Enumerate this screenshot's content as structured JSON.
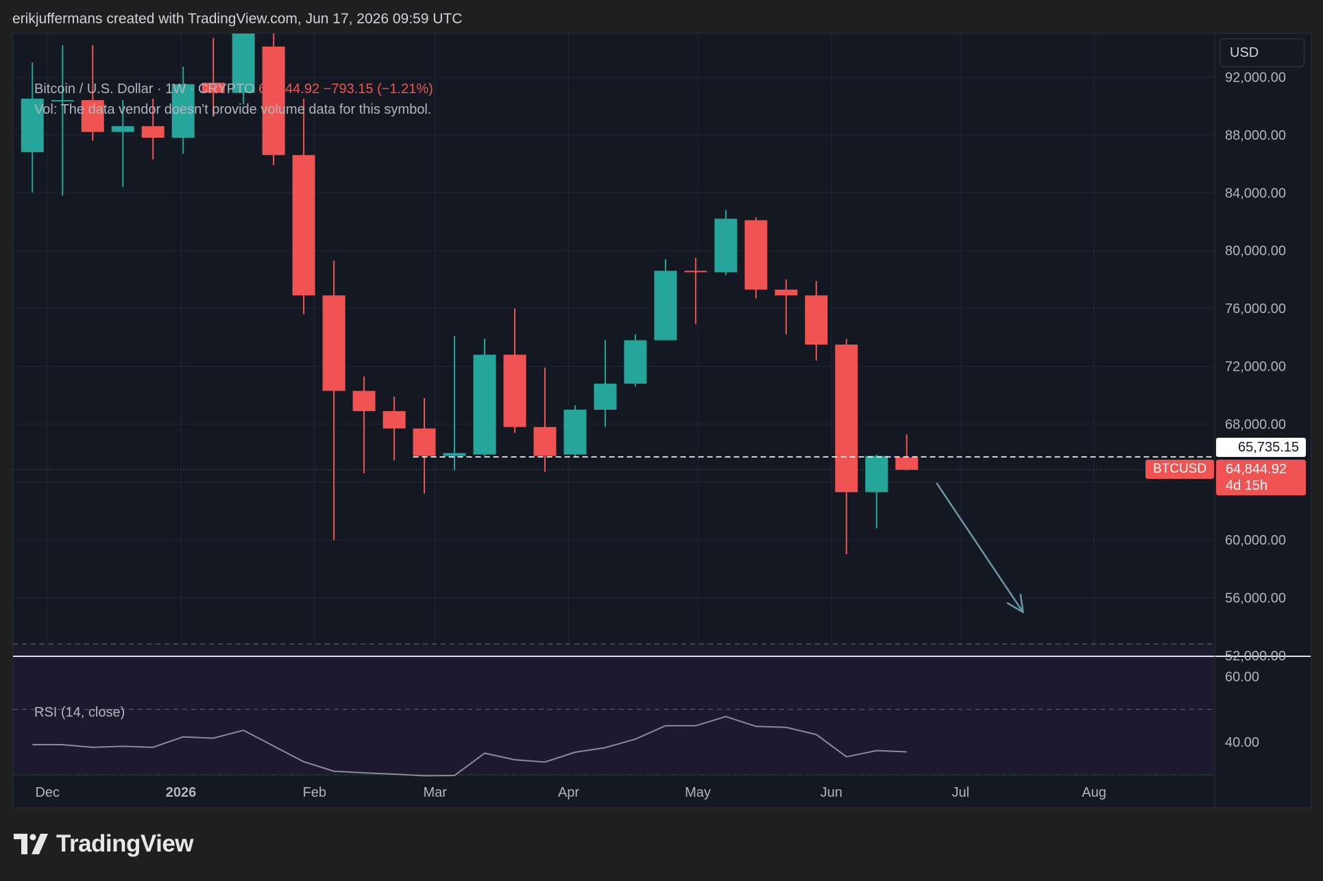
{
  "caption": "erikjuffermans created with TradingView.com, Jun 17, 2026 09:59 UTC",
  "currency_button": "USD",
  "legend": {
    "symbol_line": "Bitcoin / U.S. Dollar · 1W · CRYPTO",
    "price": "64,844.92",
    "change": "−793.15 (−1.21%)",
    "vol_note": "Vol: The data vendor doesn't provide volume data for this symbol."
  },
  "rsi_label": "RSI (14, close)",
  "brand": "TradingView",
  "price_tags": {
    "level_value": "65,735.15",
    "symbol": "BTCUSD",
    "last_value": "64,844.92",
    "countdown": "4d 15h"
  },
  "colors": {
    "up": "#26a69a",
    "down": "#f05452",
    "rsi_line": "#8c8a9c",
    "arrow": "#6b97a8",
    "background": "#141823"
  },
  "chart_data": [
    {
      "type": "candlestick",
      "title": "",
      "ylim": [
        52000,
        95000
      ],
      "y_ticks": [
        92000,
        88000,
        84000,
        80000,
        76000,
        72000,
        68000,
        64000,
        60000,
        56000,
        52000
      ],
      "y_tick_labels": [
        "92,000.00",
        "88,000.00",
        "84,000.00",
        "80,000.00",
        "76,000.00",
        "72,000.00",
        "68,000.00",
        "64,000.00",
        "60,000.00",
        "56,000.00",
        "52,000.00"
      ],
      "x_tick_labels": [
        "Dec",
        "2026",
        "Feb",
        "Mar",
        "Apr",
        "May",
        "Jun",
        "Jul",
        "Aug"
      ],
      "x_tick_dates": [
        "2025-12-01",
        "2026-01-01",
        "2026-02-01",
        "2026-03-01",
        "2026-04-01",
        "2026-05-01",
        "2026-06-01",
        "2026-07-01",
        "2026-08-01"
      ],
      "x_range": [
        "2025-11-23",
        "2026-08-29"
      ],
      "grid": true,
      "candles": [
        {
          "date": "2025-11-24",
          "open": 86800,
          "high": 93000,
          "low": 84000,
          "close": 90500
        },
        {
          "date": "2025-12-01",
          "open": 90400,
          "high": 94200,
          "low": 83800,
          "close": 90400
        },
        {
          "date": "2025-12-08",
          "open": 90400,
          "high": 94200,
          "low": 87600,
          "close": 88200
        },
        {
          "date": "2025-12-15",
          "open": 88200,
          "high": 90400,
          "low": 84400,
          "close": 88600
        },
        {
          "date": "2025-12-22",
          "open": 88600,
          "high": 90500,
          "low": 86300,
          "close": 87800
        },
        {
          "date": "2025-12-29",
          "open": 87800,
          "high": 92700,
          "low": 86700,
          "close": 91500
        },
        {
          "date": "2026-01-05",
          "open": 91600,
          "high": 94700,
          "low": 89300,
          "close": 90900
        },
        {
          "date": "2026-01-12",
          "open": 90900,
          "high": 96000,
          "low": 90100,
          "close": 95100
        },
        {
          "date": "2026-01-19",
          "open": 94100,
          "high": 95200,
          "low": 85900,
          "close": 86600
        },
        {
          "date": "2026-01-26",
          "open": 86600,
          "high": 90500,
          "low": 75600,
          "close": 76900
        },
        {
          "date": "2026-02-02",
          "open": 76900,
          "high": 79300,
          "low": 60000,
          "close": 70300
        },
        {
          "date": "2026-02-09",
          "open": 70300,
          "high": 71300,
          "low": 64600,
          "close": 68900
        },
        {
          "date": "2026-02-16",
          "open": 68900,
          "high": 69900,
          "low": 65500,
          "close": 67700
        },
        {
          "date": "2026-02-23",
          "open": 67700,
          "high": 69800,
          "low": 63200,
          "close": 65800
        },
        {
          "date": "2026-03-02",
          "open": 65800,
          "high": 74100,
          "low": 64800,
          "close": 66000
        },
        {
          "date": "2026-03-09",
          "open": 65900,
          "high": 73900,
          "low": 65800,
          "close": 72800
        },
        {
          "date": "2026-03-16",
          "open": 72800,
          "high": 76000,
          "low": 67400,
          "close": 67800
        },
        {
          "date": "2026-03-23",
          "open": 67800,
          "high": 71900,
          "low": 64700,
          "close": 65800
        },
        {
          "date": "2026-03-30",
          "open": 65900,
          "high": 69300,
          "low": 65700,
          "close": 69000
        },
        {
          "date": "2026-04-06",
          "open": 69000,
          "high": 73800,
          "low": 67800,
          "close": 70800
        },
        {
          "date": "2026-04-13",
          "open": 70800,
          "high": 74200,
          "low": 70600,
          "close": 73800
        },
        {
          "date": "2026-04-20",
          "open": 73800,
          "high": 79400,
          "low": 73800,
          "close": 78600
        },
        {
          "date": "2026-04-27",
          "open": 78600,
          "high": 79500,
          "low": 74900,
          "close": 78500
        },
        {
          "date": "2026-05-04",
          "open": 78500,
          "high": 82800,
          "low": 78300,
          "close": 82200
        },
        {
          "date": "2026-05-11",
          "open": 82100,
          "high": 82300,
          "low": 76700,
          "close": 77300
        },
        {
          "date": "2026-05-18",
          "open": 77300,
          "high": 78000,
          "low": 74200,
          "close": 76900
        },
        {
          "date": "2026-05-25",
          "open": 76900,
          "high": 77900,
          "low": 72400,
          "close": 73500
        },
        {
          "date": "2026-06-01",
          "open": 73500,
          "high": 73900,
          "low": 59000,
          "close": 63300
        },
        {
          "date": "2026-06-08",
          "open": 63300,
          "high": 65900,
          "low": 60800,
          "close": 65800
        },
        {
          "date": "2026-06-15",
          "open": 65700,
          "high": 67300,
          "low": 64800,
          "close": 64844.92
        }
      ],
      "horizontal_level": 65735.15,
      "last_price": 64844.92,
      "annotation_arrow": {
        "from": [
          "2026-06-22",
          63900
        ],
        "to": [
          "2026-07-12",
          55000
        ]
      }
    },
    {
      "type": "line",
      "title": "",
      "ylim": [
        30,
        66
      ],
      "y_ticks": [
        60,
        40
      ],
      "y_tick_labels": [
        "60.00",
        "40.00"
      ],
      "bands": [
        70,
        50,
        30
      ],
      "series": [
        {
          "name": "",
          "x": [
            "2025-11-24",
            "2025-12-01",
            "2025-12-08",
            "2025-12-15",
            "2025-12-22",
            "2025-12-29",
            "2026-01-05",
            "2026-01-12",
            "2026-01-19",
            "2026-01-26",
            "2026-02-02",
            "2026-02-09",
            "2026-02-16",
            "2026-02-23",
            "2026-03-02",
            "2026-03-09",
            "2026-03-16",
            "2026-03-23",
            "2026-03-30",
            "2026-04-06",
            "2026-04-13",
            "2026-04-20",
            "2026-04-27",
            "2026-05-04",
            "2026-05-11",
            "2026-05-18",
            "2026-05-25",
            "2026-06-01",
            "2026-06-08",
            "2026-06-15"
          ],
          "values": [
            39.2,
            39.2,
            38.4,
            38.7,
            38.4,
            41.6,
            41.2,
            43.6,
            38.8,
            34.0,
            31.1,
            30.6,
            30.2,
            29.7,
            29.8,
            36.6,
            34.6,
            33.9,
            36.9,
            38.3,
            40.9,
            45.0,
            45.0,
            47.8,
            44.8,
            44.5,
            42.3,
            35.5,
            37.4,
            37.0
          ]
        }
      ]
    }
  ]
}
